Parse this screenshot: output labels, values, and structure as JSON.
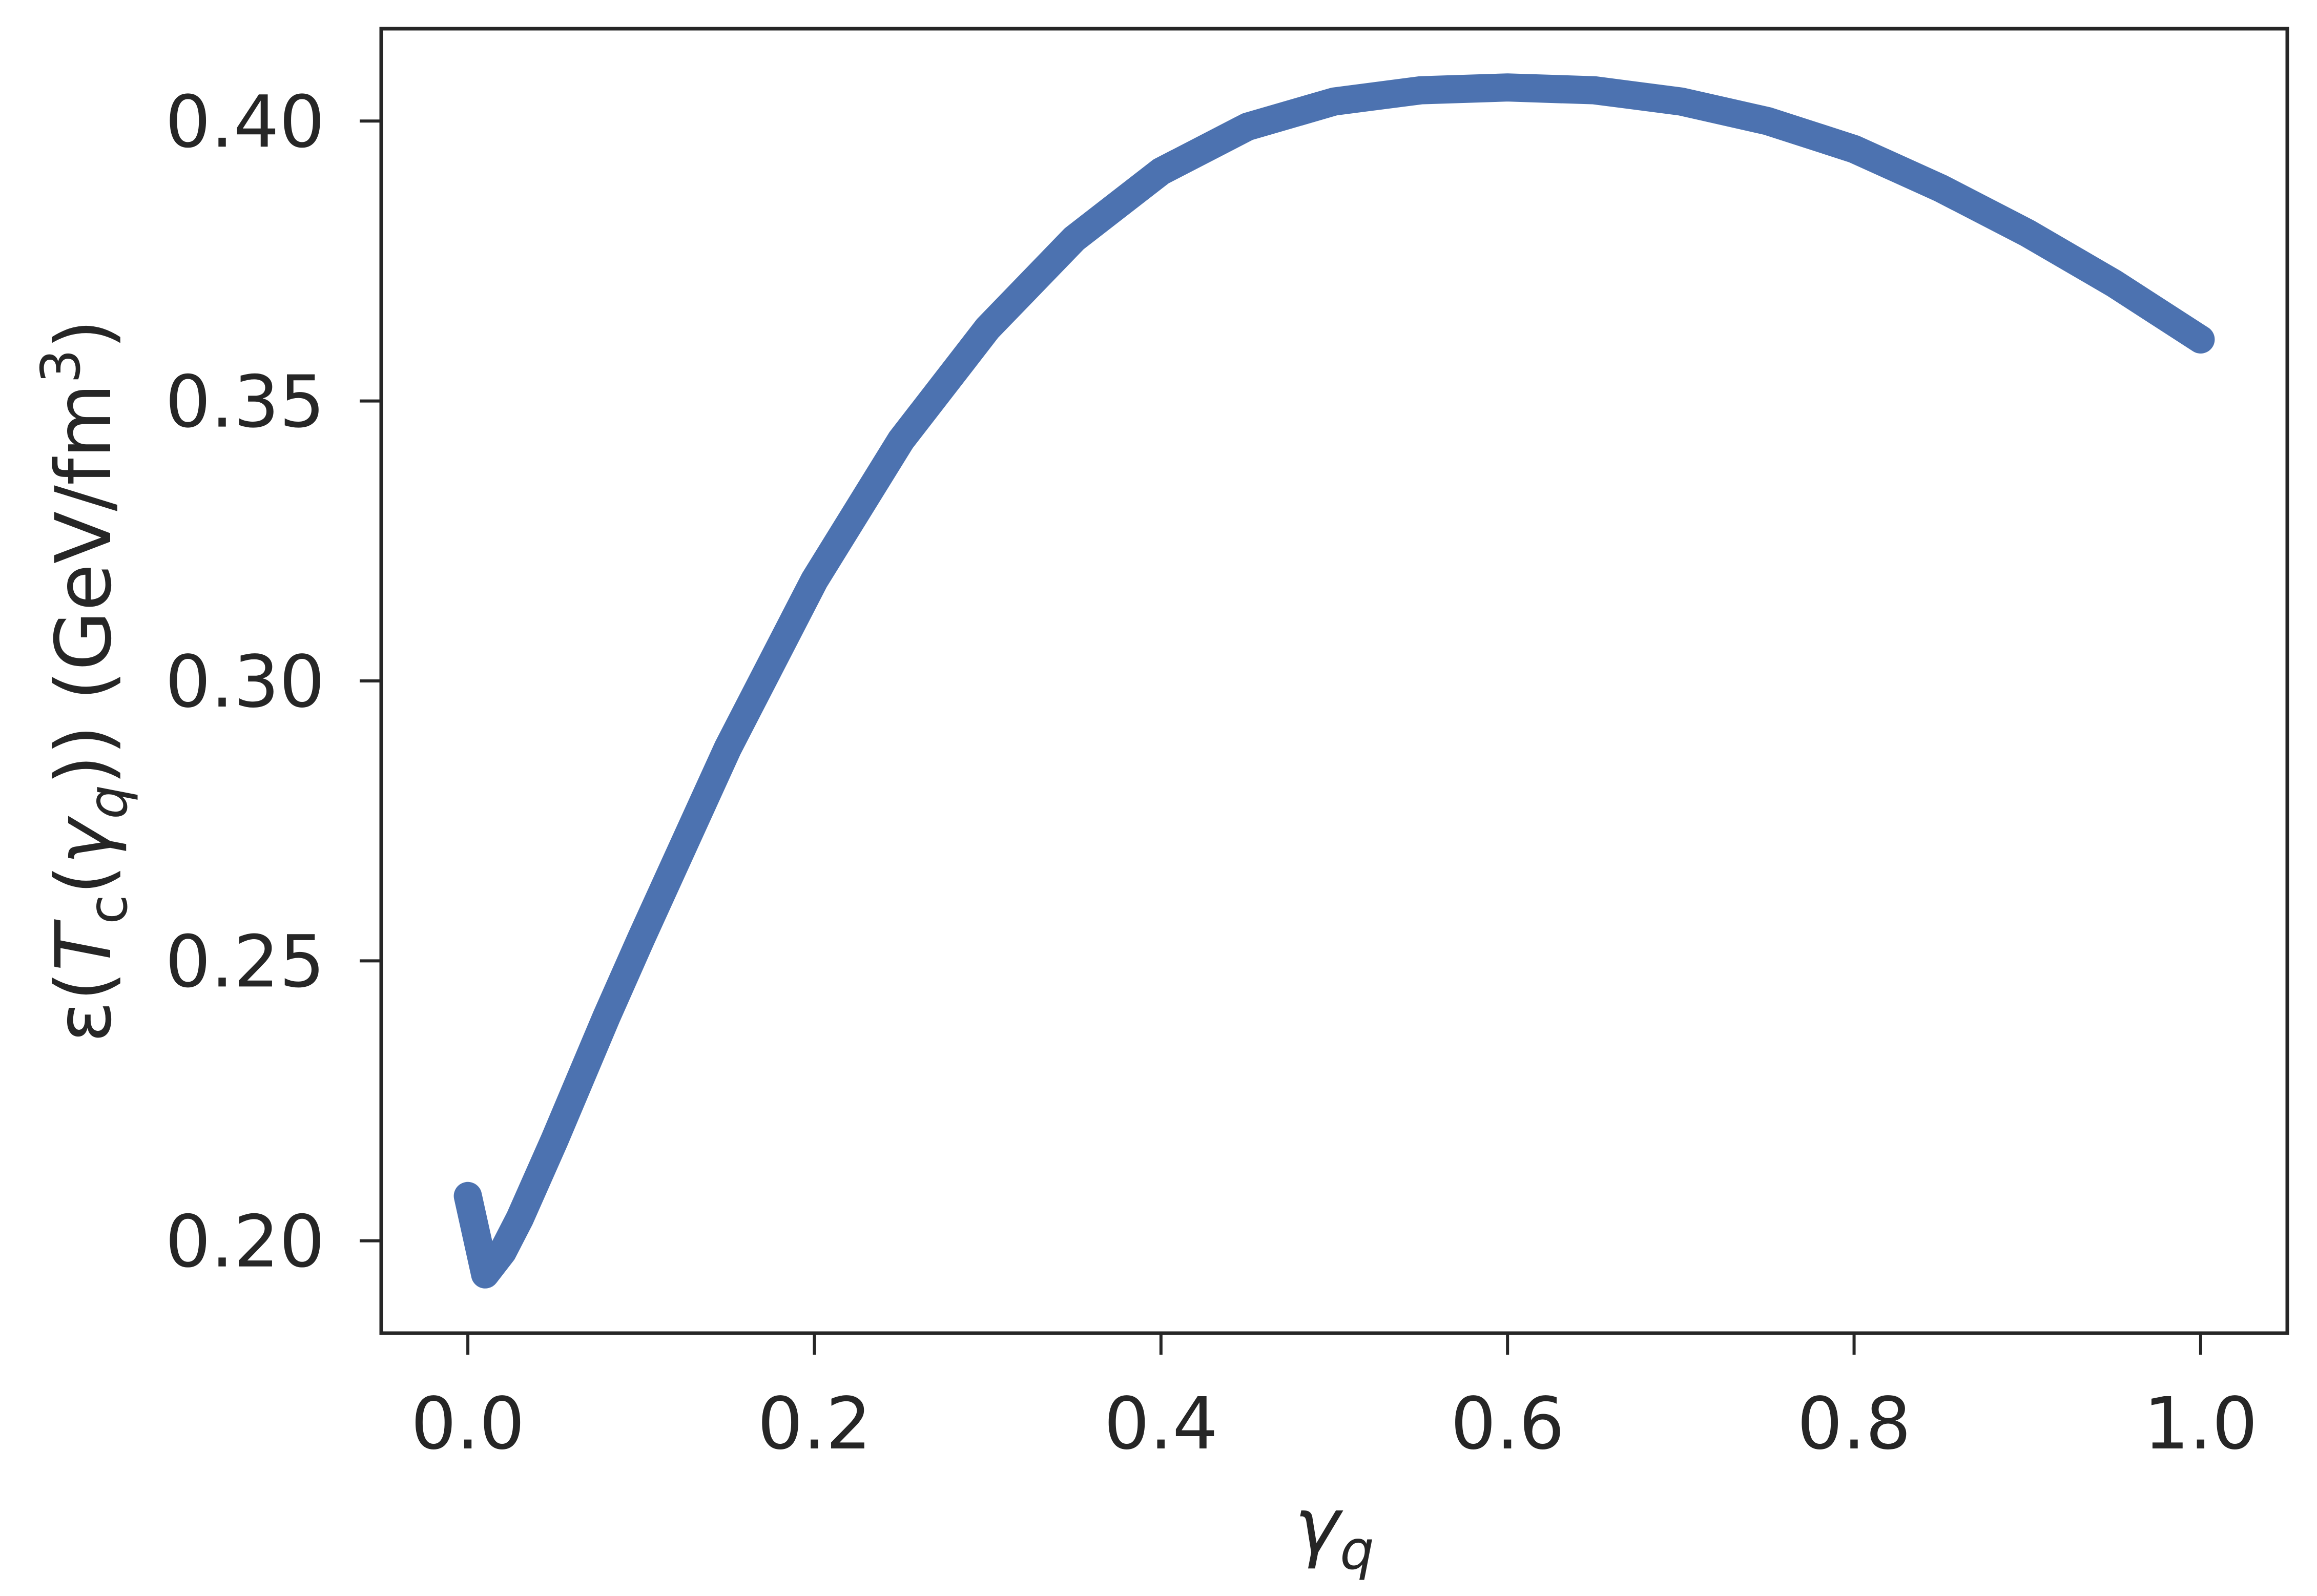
{
  "chart_data": {
    "type": "line",
    "title": "",
    "xlabel": {
      "base": "γ",
      "sub": "q"
    },
    "ylabel": {
      "pre": "ε(",
      "T": "T",
      "T_sub": "c",
      "mid": "(",
      "gamma": "γ",
      "gamma_sub": "q",
      "post": ")) (GeV/fm",
      "sup": "3",
      "end": ")"
    },
    "xlim": [
      -0.05,
      1.05
    ],
    "ylim": [
      0.1835,
      0.4165
    ],
    "xticks": [
      0.0,
      0.2,
      0.4,
      0.6,
      0.8,
      1.0
    ],
    "xtick_labels": [
      "0.0",
      "0.2",
      "0.4",
      "0.6",
      "0.8",
      "1.0"
    ],
    "yticks": [
      0.2,
      0.25,
      0.3,
      0.35,
      0.4
    ],
    "ytick_labels": [
      "0.20",
      "0.25",
      "0.30",
      "0.35",
      "0.40"
    ],
    "grid": false,
    "legend": "none",
    "color": "#4c72b0",
    "series": [
      {
        "x": [
          0.0,
          0.01,
          0.02,
          0.03,
          0.05,
          0.08,
          0.1,
          0.15,
          0.2,
          0.25,
          0.3,
          0.35,
          0.4,
          0.45,
          0.5,
          0.55,
          0.6,
          0.65,
          0.7,
          0.75,
          0.8,
          0.85,
          0.9,
          0.95,
          1.0
        ],
        "y": [
          0.208,
          0.194,
          0.198,
          0.204,
          0.218,
          0.24,
          0.254,
          0.288,
          0.318,
          0.343,
          0.363,
          0.379,
          0.391,
          0.399,
          0.4035,
          0.4055,
          0.406,
          0.4055,
          0.4035,
          0.4,
          0.395,
          0.388,
          0.38,
          0.371,
          0.361
        ]
      }
    ]
  }
}
